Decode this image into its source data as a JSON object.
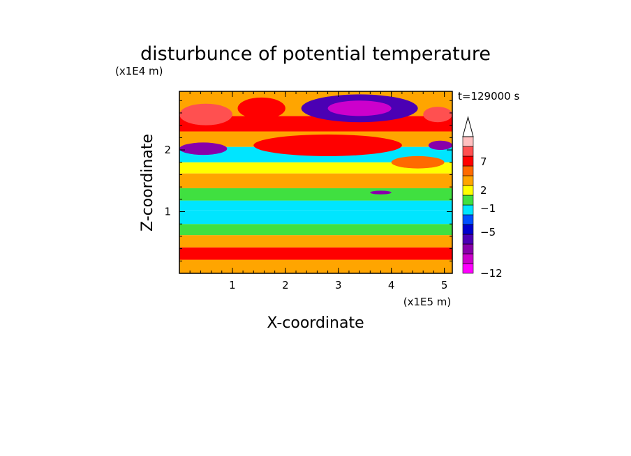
{
  "chart_data": {
    "type": "heatmap",
    "title": "disturbunce of potential temperature",
    "xlabel": "X-coordinate",
    "ylabel": "Z-coordinate",
    "x_unit": "(x1E5 m)",
    "y_unit": "(x1E4 m)",
    "time_label": "t=129000 s",
    "xlim": [
      0,
      5.15
    ],
    "ylim": [
      0,
      2.95
    ],
    "x_ticks": [
      "1",
      "2",
      "3",
      "4",
      "5"
    ],
    "x_tick_values": [
      1,
      2,
      3,
      4,
      5
    ],
    "y_ticks": [
      "1",
      "2"
    ],
    "y_tick_values": [
      1,
      2
    ],
    "grid": false,
    "colorbar": {
      "placement": "right",
      "labels": [
        "7",
        "2",
        "-1",
        "-5",
        "-12"
      ],
      "levels": [
        -12,
        -5,
        -1,
        2,
        7
      ],
      "colors": [
        "#ff00ff",
        "#cc00cc",
        "#8800aa",
        "#4b00b4",
        "#0000cd",
        "#0050ff",
        "#00e5ff",
        "#40e040",
        "#ffff00",
        "#ffa500",
        "#ff6a00",
        "#ff0000",
        "#ff5050",
        "#ffc0c0"
      ],
      "extend_top": true
    },
    "bands": [
      {
        "z": [
          0.0,
          0.22
        ],
        "value": 2
      },
      {
        "z": [
          0.22,
          0.42
        ],
        "value": 4
      },
      {
        "z": [
          0.42,
          0.62
        ],
        "value": 2
      },
      {
        "z": [
          0.62,
          0.8
        ],
        "value": 0
      },
      {
        "z": [
          0.8,
          1.02
        ],
        "value": -1
      },
      {
        "z": [
          1.02,
          1.18
        ],
        "value": -1
      },
      {
        "z": [
          1.18,
          1.38
        ],
        "value": 0
      },
      {
        "z": [
          1.38,
          1.62
        ],
        "value": 2
      },
      {
        "z": [
          1.62,
          1.8
        ],
        "value": 1
      },
      {
        "z": [
          1.8,
          2.05
        ],
        "value": -1
      },
      {
        "z": [
          2.05,
          2.3
        ],
        "value": 2
      },
      {
        "z": [
          2.3,
          2.55
        ],
        "value": 4
      },
      {
        "z": [
          2.55,
          2.95
        ],
        "value": 2
      }
    ],
    "features": [
      {
        "x": [
          0.0,
          1.0
        ],
        "z": [
          2.4,
          2.75
        ],
        "value": 5
      },
      {
        "x": [
          1.1,
          2.0
        ],
        "z": [
          2.5,
          2.85
        ],
        "value": 4
      },
      {
        "x": [
          4.6,
          5.15
        ],
        "z": [
          2.45,
          2.7
        ],
        "value": 5
      },
      {
        "x": [
          2.3,
          4.5
        ],
        "z": [
          2.45,
          2.9
        ],
        "value": -4
      },
      {
        "x": [
          2.8,
          4.0
        ],
        "z": [
          2.55,
          2.8
        ],
        "value": -6
      },
      {
        "x": [
          0.0,
          0.9
        ],
        "z": [
          1.92,
          2.12
        ],
        "value": -5
      },
      {
        "x": [
          4.7,
          5.15
        ],
        "z": [
          2.0,
          2.15
        ],
        "value": -5
      },
      {
        "x": [
          3.6,
          4.0
        ],
        "z": [
          1.28,
          1.34
        ],
        "value": -5
      },
      {
        "x": [
          1.4,
          4.2
        ],
        "z": [
          1.9,
          2.25
        ],
        "value": 4
      },
      {
        "x": [
          4.0,
          5.0
        ],
        "z": [
          1.7,
          1.9
        ],
        "value": 3
      }
    ]
  }
}
